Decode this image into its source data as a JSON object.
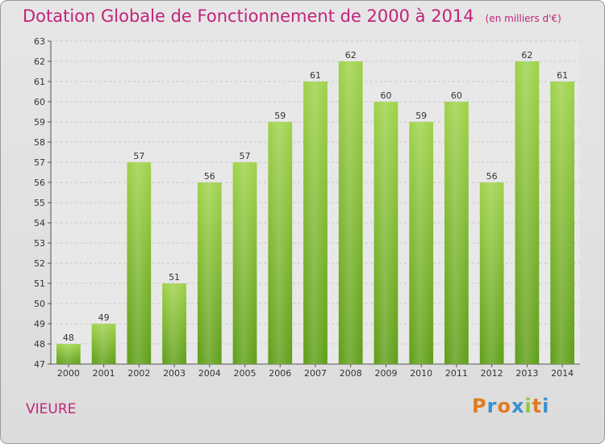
{
  "header": {
    "title": "Dotation Globale de Fonctionnement de 2000 à 2014",
    "unit": "(en milliers d'€)"
  },
  "footer": {
    "commune": "VIEURE",
    "logo_text": "Proxiti"
  },
  "colors": {
    "title": "#c2237a",
    "bar_top": "#9fd24a",
    "bar_bottom": "#5f9e18",
    "background": "#e3e3e3",
    "logo_letters": [
      "#e07b22",
      "#3a8fd0",
      "#e07b22",
      "#3a8fd0",
      "#8cc63f",
      "#e07b22",
      "#3a8fd0"
    ]
  },
  "chart_data": {
    "type": "bar",
    "categories": [
      "2000",
      "2001",
      "2002",
      "2003",
      "2004",
      "2005",
      "2006",
      "2007",
      "2008",
      "2009",
      "2010",
      "2011",
      "2012",
      "2013",
      "2014"
    ],
    "values": [
      48,
      49,
      57,
      51,
      56,
      57,
      59,
      61,
      62,
      60,
      59,
      60,
      56,
      62,
      61
    ],
    "title": "Dotation Globale de Fonctionnement de 2000 à 2014",
    "subtitle": "(en milliers d'€)",
    "xlabel": "",
    "ylabel": "",
    "ylim": [
      47,
      63
    ],
    "yticks": [
      47,
      48,
      49,
      50,
      51,
      52,
      53,
      54,
      55,
      56,
      57,
      58,
      59,
      60,
      61,
      62,
      63
    ],
    "grid": true,
    "legend": "none"
  }
}
